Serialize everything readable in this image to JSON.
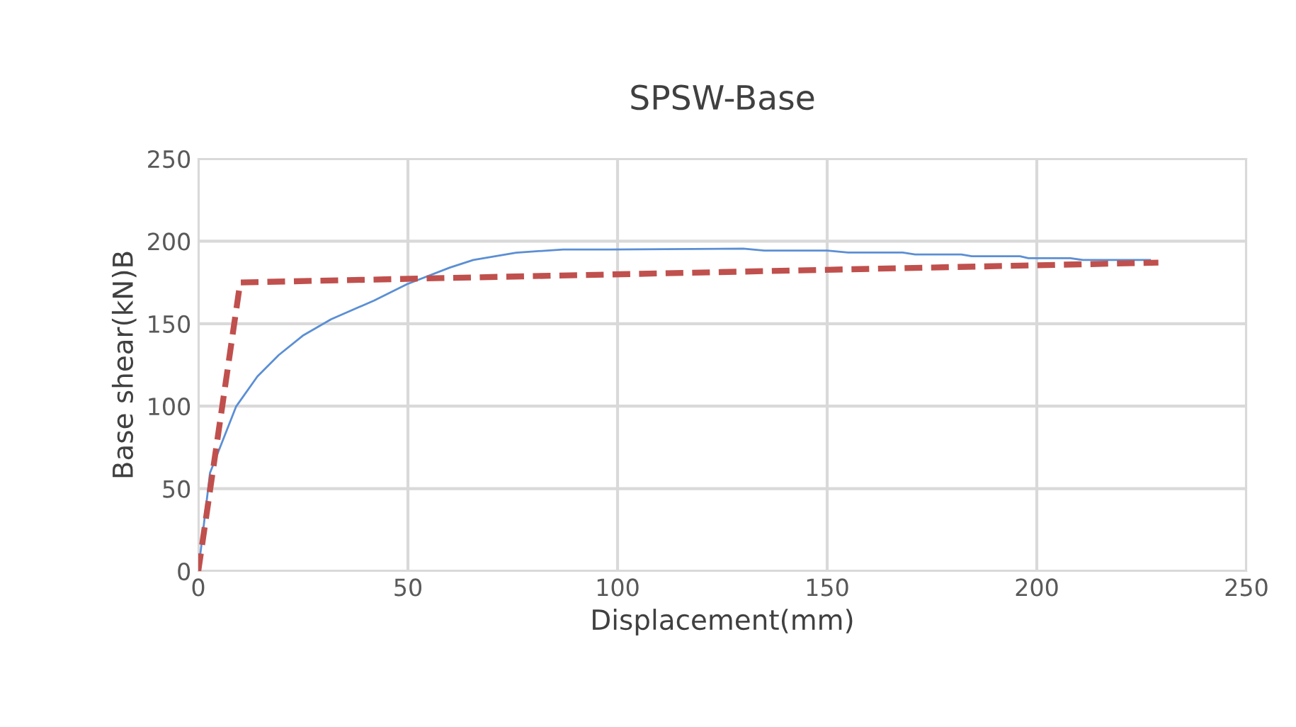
{
  "chart_data": {
    "type": "line",
    "title": "SPSW-Base",
    "xlabel": "Displacement(mm)",
    "ylabel": "Base shear(kN)B",
    "series": [
      {
        "color": "#5b8fd4",
        "line_style": "solid",
        "x": [
          0,
          2.8,
          9,
          14.1,
          19.2,
          24.9,
          31.7,
          41.9,
          49.8,
          60,
          65.6,
          75.8,
          87,
          98.4,
          130,
          135,
          150,
          155,
          168,
          171,
          182,
          184.5,
          196,
          198,
          208,
          211,
          227
        ],
        "values": [
          0,
          59.6,
          99.7,
          118,
          131,
          142.7,
          152.7,
          164,
          174,
          184,
          188.6,
          193,
          195,
          195,
          195.5,
          194.3,
          194.3,
          193.1,
          193.1,
          192,
          192,
          190.9,
          190.9,
          189.7,
          189.7,
          188.6,
          188.6
        ]
      },
      {
        "color": "#c0504d",
        "line_style": "dashed",
        "x": [
          0,
          10,
          229
        ],
        "values": [
          0,
          175,
          187
        ]
      }
    ],
    "xlim": [
      0,
      250
    ],
    "xticks": [
      0,
      50,
      100,
      150,
      200,
      250
    ],
    "ylim": [
      0,
      250
    ],
    "yticks": [
      0,
      50,
      100,
      150,
      200,
      250
    ],
    "grid": true,
    "legend": false
  }
}
